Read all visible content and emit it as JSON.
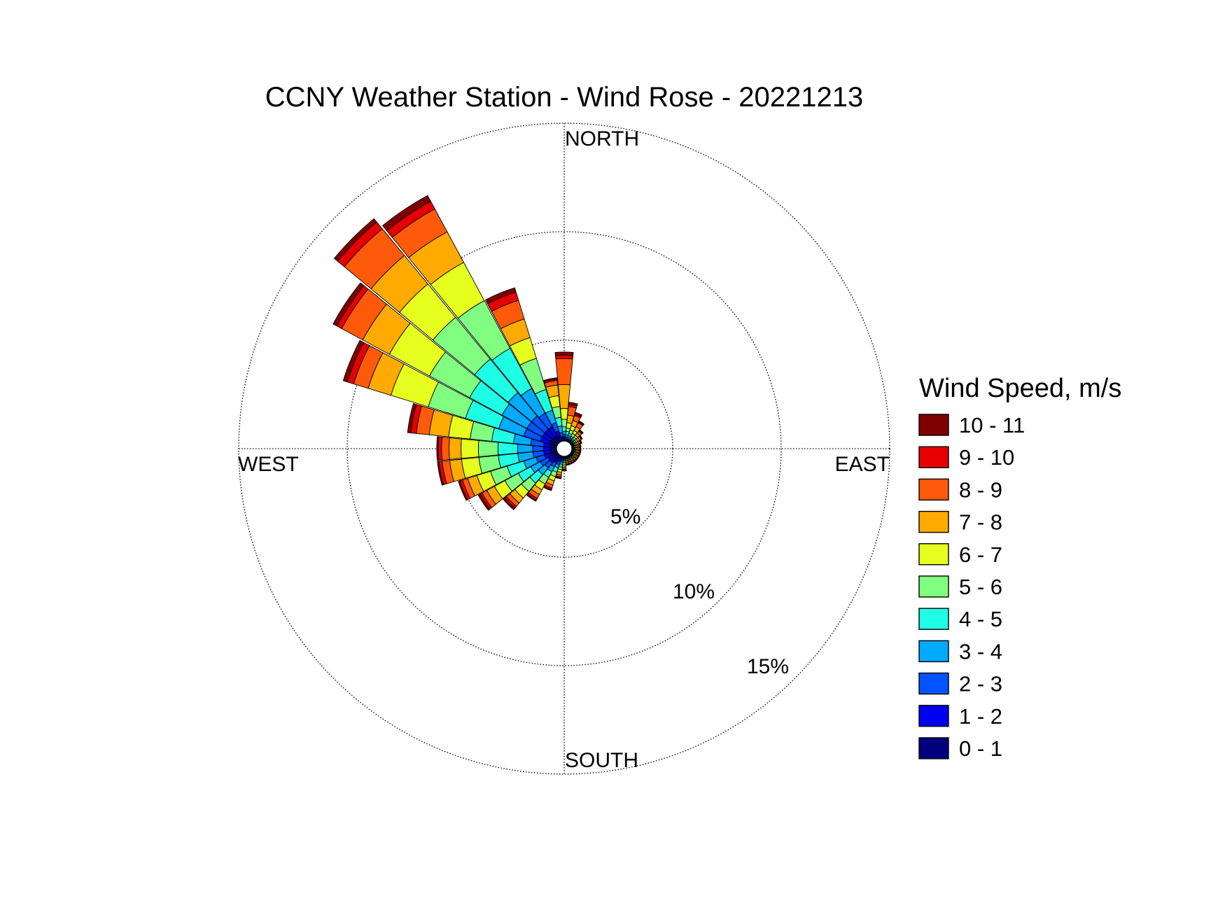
{
  "chart_data": {
    "type": "wind_rose",
    "title": "CCNY Weather Station - Wind Rose - 20221213",
    "direction_labels": {
      "north": "NORTH",
      "south": "SOUTH",
      "east": "EAST",
      "west": "WEST"
    },
    "radial_axis": {
      "unit": "%",
      "rings": [
        5,
        10,
        15
      ],
      "ring_labels": [
        "5%",
        "10%",
        "15%"
      ],
      "max": 15,
      "grid": true
    },
    "legend": {
      "title": "Wind Speed, m/s",
      "placement": "right",
      "bins": [
        {
          "label": "10 - 11",
          "color": "#7f0000"
        },
        {
          "label": "9 - 10",
          "color": "#e60000"
        },
        {
          "label": "8 - 9",
          "color": "#ff5a0a"
        },
        {
          "label": "7 - 8",
          "color": "#ffaa00"
        },
        {
          "label": "6 - 7",
          "color": "#e6ff1e"
        },
        {
          "label": "5 - 6",
          "color": "#80ff80"
        },
        {
          "label": "4 - 5",
          "color": "#1effe6"
        },
        {
          "label": "3 - 4",
          "color": "#00aaff"
        },
        {
          "label": "2 - 3",
          "color": "#0055ff"
        },
        {
          "label": "1 - 2",
          "color": "#0000f0"
        },
        {
          "label": "0 - 1",
          "color": "#00007f"
        }
      ]
    },
    "bin_order_inner_to_outer": [
      "0 - 1",
      "1 - 2",
      "2 - 3",
      "3 - 4",
      "4 - 5",
      "5 - 6",
      "6 - 7",
      "7 - 8",
      "8 - 9",
      "9 - 10",
      "10 - 11"
    ],
    "directions": [
      {
        "angle": 0,
        "cumulative": [
          0.1,
          0.2,
          0.3,
          0.45,
          0.65,
          1.0,
          1.5,
          2.6,
          3.8,
          3.95,
          4.1
        ]
      },
      {
        "angle": 11.25,
        "cumulative": [
          0.05,
          0.1,
          0.2,
          0.3,
          0.45,
          0.6,
          0.85,
          1.2,
          1.6,
          1.7,
          1.8
        ]
      },
      {
        "angle": 22.5,
        "cumulative": [
          0.05,
          0.1,
          0.18,
          0.27,
          0.38,
          0.55,
          0.75,
          1.0,
          1.25,
          1.32,
          1.4
        ]
      },
      {
        "angle": 33.75,
        "cumulative": [
          0.05,
          0.1,
          0.15,
          0.22,
          0.3,
          0.45,
          0.6,
          0.8,
          1.0,
          1.05,
          1.1
        ]
      },
      {
        "angle": 45,
        "cumulative": [
          0.05,
          0.08,
          0.12,
          0.18,
          0.25,
          0.35,
          0.45,
          0.58,
          0.7,
          0.74,
          0.78
        ]
      },
      {
        "angle": 56.25,
        "cumulative": [
          0.04,
          0.07,
          0.1,
          0.15,
          0.2,
          0.27,
          0.35,
          0.45,
          0.55,
          0.58,
          0.6
        ]
      },
      {
        "angle": 67.5,
        "cumulative": [
          0.04,
          0.06,
          0.09,
          0.12,
          0.16,
          0.22,
          0.28,
          0.36,
          0.44,
          0.47,
          0.5
        ]
      },
      {
        "angle": 78.75,
        "cumulative": [
          0.03,
          0.05,
          0.08,
          0.11,
          0.14,
          0.19,
          0.24,
          0.3,
          0.37,
          0.39,
          0.42
        ]
      },
      {
        "angle": 90,
        "cumulative": [
          0.03,
          0.05,
          0.08,
          0.11,
          0.14,
          0.19,
          0.24,
          0.3,
          0.37,
          0.39,
          0.42
        ]
      },
      {
        "angle": 101.25,
        "cumulative": [
          0.03,
          0.05,
          0.08,
          0.11,
          0.14,
          0.19,
          0.24,
          0.3,
          0.37,
          0.39,
          0.42
        ]
      },
      {
        "angle": 112.5,
        "cumulative": [
          0.03,
          0.05,
          0.08,
          0.11,
          0.14,
          0.19,
          0.24,
          0.3,
          0.37,
          0.39,
          0.42
        ]
      },
      {
        "angle": 123.75,
        "cumulative": [
          0.03,
          0.05,
          0.08,
          0.11,
          0.14,
          0.19,
          0.24,
          0.3,
          0.37,
          0.39,
          0.42
        ]
      },
      {
        "angle": 135,
        "cumulative": [
          0.03,
          0.05,
          0.08,
          0.11,
          0.14,
          0.19,
          0.24,
          0.3,
          0.37,
          0.39,
          0.42
        ]
      },
      {
        "angle": 146.25,
        "cumulative": [
          0.03,
          0.05,
          0.08,
          0.11,
          0.14,
          0.19,
          0.24,
          0.3,
          0.37,
          0.39,
          0.42
        ]
      },
      {
        "angle": 157.5,
        "cumulative": [
          0.03,
          0.05,
          0.08,
          0.11,
          0.14,
          0.19,
          0.24,
          0.3,
          0.37,
          0.39,
          0.42
        ]
      },
      {
        "angle": 168.75,
        "cumulative": [
          0.03,
          0.05,
          0.08,
          0.11,
          0.14,
          0.19,
          0.24,
          0.3,
          0.37,
          0.39,
          0.42
        ]
      },
      {
        "angle": 180,
        "cumulative": [
          0.05,
          0.09,
          0.14,
          0.2,
          0.27,
          0.36,
          0.44,
          0.52,
          0.6,
          0.64,
          0.67
        ]
      },
      {
        "angle": 191.25,
        "cumulative": [
          0.1,
          0.18,
          0.27,
          0.38,
          0.5,
          0.62,
          0.74,
          0.86,
          0.96,
          1.0,
          1.04
        ]
      },
      {
        "angle": 202.5,
        "cumulative": [
          0.15,
          0.28,
          0.42,
          0.58,
          0.78,
          1.0,
          1.2,
          1.4,
          1.55,
          1.62,
          1.67
        ]
      },
      {
        "angle": 213.75,
        "cumulative": [
          0.2,
          0.4,
          0.6,
          0.85,
          1.15,
          1.5,
          1.8,
          2.05,
          2.25,
          2.34,
          2.4
        ]
      },
      {
        "angle": 225,
        "cumulative": [
          0.25,
          0.5,
          0.8,
          1.2,
          1.7,
          2.2,
          2.6,
          2.9,
          3.1,
          3.2,
          3.3
        ]
      },
      {
        "angle": 236.25,
        "cumulative": [
          0.25,
          0.5,
          0.9,
          1.4,
          2.05,
          2.75,
          3.3,
          3.7,
          3.95,
          4.05,
          4.15
        ]
      },
      {
        "angle": 247.5,
        "cumulative": [
          0.3,
          0.6,
          1.0,
          1.6,
          2.4,
          3.2,
          3.85,
          4.3,
          4.55,
          4.68,
          4.75
        ]
      },
      {
        "angle": 258.75,
        "cumulative": [
          0.3,
          0.6,
          1.1,
          1.8,
          2.7,
          3.6,
          4.4,
          4.95,
          5.3,
          5.45,
          5.52
        ]
      },
      {
        "angle": 270,
        "cumulative": [
          0.3,
          0.6,
          1.1,
          1.8,
          2.7,
          3.6,
          4.4,
          4.95,
          5.3,
          5.45,
          5.52
        ]
      },
      {
        "angle": 281.25,
        "cumulative": [
          0.3,
          0.6,
          1.2,
          2.0,
          3.0,
          4.0,
          5.0,
          5.9,
          6.5,
          6.75,
          6.9
        ]
      },
      {
        "angle": 292.5,
        "cumulative": [
          0.35,
          0.8,
          1.6,
          2.8,
          4.4,
          6.2,
          8.0,
          9.1,
          9.8,
          10.1,
          10.3
        ]
      },
      {
        "angle": 303.75,
        "cumulative": [
          0.35,
          0.8,
          1.6,
          2.9,
          4.6,
          6.7,
          8.8,
          10.2,
          11.3,
          11.55,
          11.75
        ]
      },
      {
        "angle": 315,
        "cumulative": [
          0.35,
          0.8,
          1.6,
          3.0,
          5.0,
          7.5,
          9.5,
          11.2,
          12.8,
          13.2,
          13.4
        ]
      },
      {
        "angle": 326.25,
        "cumulative": [
          0.35,
          0.8,
          1.5,
          2.8,
          4.9,
          7.4,
          9.4,
          11.0,
          12.2,
          12.6,
          12.9
        ]
      },
      {
        "angle": 337.5,
        "cumulative": [
          0.25,
          0.5,
          0.9,
          1.5,
          2.5,
          4.0,
          5.0,
          5.9,
          6.8,
          7.2,
          7.4
        ]
      },
      {
        "angle": 348.75,
        "cumulative": [
          0.1,
          0.2,
          0.4,
          0.7,
          1.1,
          1.6,
          2.1,
          2.6,
          2.8,
          2.87,
          2.93
        ]
      }
    ]
  }
}
